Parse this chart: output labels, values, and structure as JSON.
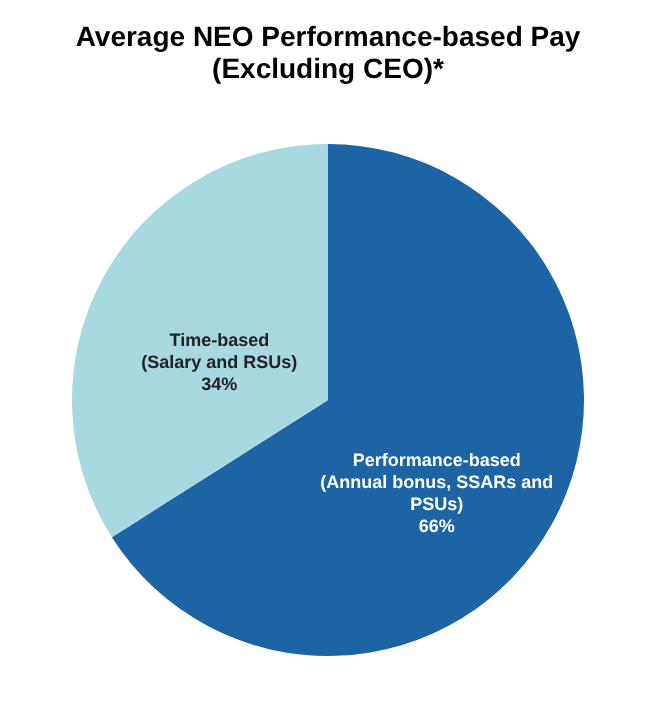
{
  "chart_data": {
    "type": "pie",
    "title": "Average NEO Performance-based Pay\n(Excluding CEO)*",
    "categories": [
      "Performance-based\n(Annual bonus, SSARs and\nPSUs)",
      "Time-based\n(Salary and RSUs)"
    ],
    "values": [
      66,
      34
    ],
    "colors": [
      "#1c64a4",
      "#a8d8e0"
    ],
    "value_labels": [
      "66%",
      "34%"
    ],
    "legend": false
  }
}
